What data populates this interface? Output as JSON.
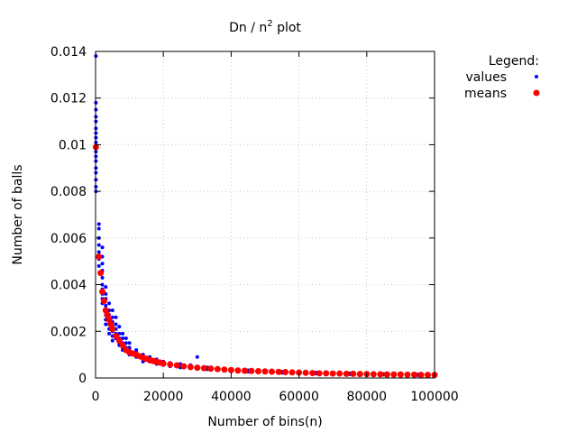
{
  "chart_data": {
    "type": "scatter",
    "title_main": "Dn / n",
    "title_sup": "2",
    "title_tail": " plot",
    "xlabel": "Number of bins(n)",
    "ylabel": "Number of balls",
    "xlim": [
      0,
      100000
    ],
    "ylim": [
      0,
      0.014
    ],
    "xticks": [
      0,
      20000,
      40000,
      60000,
      80000,
      100000
    ],
    "xtick_labels": [
      "0",
      "20000",
      "40000",
      "60000",
      "80000",
      "100000"
    ],
    "yticks": [
      0,
      0.002,
      0.004,
      0.006,
      0.008,
      0.01,
      0.012,
      0.014
    ],
    "ytick_labels": [
      "0",
      "0.002",
      "0.004",
      "0.006",
      "0.008",
      "0.01",
      "0.012",
      "0.014"
    ],
    "grid": true,
    "legend": {
      "title": "Legend:",
      "placement": "outside-top-right",
      "entries": [
        "values",
        "means"
      ]
    },
    "series": [
      {
        "name": "values",
        "color": "#0000ff",
        "x": [
          100,
          100,
          100,
          100,
          100,
          100,
          100,
          100,
          100,
          100,
          100,
          100,
          100,
          100,
          100,
          100,
          100,
          100,
          1000,
          1000,
          1000,
          1000,
          1000,
          1000,
          1000,
          2000,
          2000,
          2000,
          2000,
          2000,
          2000,
          2000,
          2000,
          2000,
          2000,
          3000,
          3000,
          3000,
          3000,
          3000,
          3000,
          3000,
          3000,
          4000,
          4000,
          4000,
          4000,
          4000,
          4000,
          4000,
          5000,
          5000,
          5000,
          5000,
          5000,
          5000,
          5000,
          6000,
          6000,
          6000,
          6000,
          6000,
          7000,
          7000,
          7000,
          7000,
          7000,
          8000,
          8000,
          8000,
          8000,
          8000,
          9000,
          9000,
          9000,
          9000,
          10000,
          10000,
          10000,
          10000,
          12000,
          12000,
          12000,
          12000,
          14000,
          14000,
          14000,
          14000,
          16000,
          16000,
          16000,
          18000,
          18000,
          18000,
          20000,
          20000,
          20000,
          22000,
          22000,
          22000,
          25000,
          25000,
          25000,
          28000,
          28000,
          28000,
          30000,
          30000,
          30000,
          33000,
          33000,
          36000,
          36000,
          40000,
          40000,
          45000,
          45000,
          50000,
          50000,
          55000,
          55000,
          60000,
          60000,
          65000,
          65000,
          70000,
          70000,
          75000,
          75000,
          80000,
          80000,
          85000,
          85000,
          90000,
          90000,
          95000,
          95000,
          100000,
          100000
        ],
        "y": [
          0.0138,
          0.0118,
          0.0115,
          0.0112,
          0.011,
          0.0107,
          0.0105,
          0.0103,
          0.0101,
          0.0099,
          0.0097,
          0.0095,
          0.0093,
          0.009,
          0.0088,
          0.0085,
          0.0082,
          0.008,
          0.0066,
          0.0064,
          0.006,
          0.0057,
          0.0054,
          0.0051,
          0.0048,
          0.0056,
          0.0052,
          0.0049,
          0.0046,
          0.0043,
          0.004,
          0.0038,
          0.0036,
          0.0034,
          0.0032,
          0.0039,
          0.0036,
          0.0034,
          0.0031,
          0.0029,
          0.0027,
          0.0025,
          0.0023,
          0.0032,
          0.0029,
          0.0027,
          0.0025,
          0.0023,
          0.0021,
          0.0019,
          0.0029,
          0.0026,
          0.0024,
          0.0022,
          0.002,
          0.0018,
          0.0016,
          0.0026,
          0.0023,
          0.0021,
          0.0019,
          0.0017,
          0.0022,
          0.0019,
          0.0017,
          0.0015,
          0.0014,
          0.0019,
          0.0017,
          0.0015,
          0.0013,
          0.0012,
          0.0017,
          0.0015,
          0.0013,
          0.0012,
          0.0015,
          0.0013,
          0.0012,
          0.001,
          0.0012,
          0.0011,
          0.001,
          0.0009,
          0.001,
          0.0009,
          0.0008,
          0.0007,
          0.0009,
          0.0008,
          0.0007,
          0.0008,
          0.0007,
          0.0006,
          0.0007,
          0.0006,
          0.00055,
          0.00065,
          0.00057,
          0.0005,
          0.0006,
          0.00052,
          0.00045,
          0.00055,
          0.00048,
          0.00042,
          0.0009,
          0.00045,
          0.0004,
          0.00045,
          0.00037,
          0.0004,
          0.00034,
          0.00036,
          0.0003,
          0.00033,
          0.00027,
          0.0003,
          0.00024,
          0.00027,
          0.00022,
          0.00025,
          0.0002,
          0.00023,
          0.00019,
          0.00021,
          0.00017,
          0.0002,
          0.00016,
          0.00018,
          0.00015,
          0.00017,
          0.00014,
          0.00016,
          0.00013,
          0.00015,
          0.00012,
          0.00014,
          0.00011
        ]
      },
      {
        "name": "means",
        "color": "#ff0000",
        "x": [
          100,
          1000,
          1500,
          2000,
          2500,
          3000,
          3500,
          4000,
          4500,
          5000,
          6000,
          7000,
          8000,
          9000,
          10000,
          11000,
          12000,
          13000,
          14000,
          15000,
          16000,
          17000,
          18000,
          19000,
          20000,
          22000,
          24000,
          26000,
          28000,
          30000,
          32000,
          34000,
          36000,
          38000,
          40000,
          42000,
          44000,
          46000,
          48000,
          50000,
          52000,
          54000,
          56000,
          58000,
          60000,
          62000,
          64000,
          66000,
          68000,
          70000,
          72000,
          74000,
          76000,
          78000,
          80000,
          82000,
          84000,
          86000,
          88000,
          90000,
          92000,
          94000,
          96000,
          98000,
          100000
        ],
        "y": [
          0.0099,
          0.0052,
          0.0045,
          0.0037,
          0.0033,
          0.0029,
          0.0027,
          0.0025,
          0.0023,
          0.0021,
          0.0018,
          0.0016,
          0.0014,
          0.0012,
          0.0011,
          0.00105,
          0.001,
          0.00093,
          0.00087,
          0.00082,
          0.00077,
          0.00073,
          0.00069,
          0.00066,
          0.00062,
          0.00058,
          0.00054,
          0.0005,
          0.00047,
          0.00044,
          0.00042,
          0.0004,
          0.00038,
          0.00036,
          0.00034,
          0.00032,
          0.00031,
          0.0003,
          0.00029,
          0.00028,
          0.00027,
          0.00026,
          0.00025,
          0.00024,
          0.00023,
          0.00022,
          0.00021,
          0.0002,
          0.0002,
          0.00019,
          0.00019,
          0.00018,
          0.00018,
          0.00017,
          0.00017,
          0.00016,
          0.00016,
          0.00015,
          0.00015,
          0.00015,
          0.00014,
          0.00014,
          0.00013,
          0.00013,
          0.00013
        ]
      }
    ]
  }
}
